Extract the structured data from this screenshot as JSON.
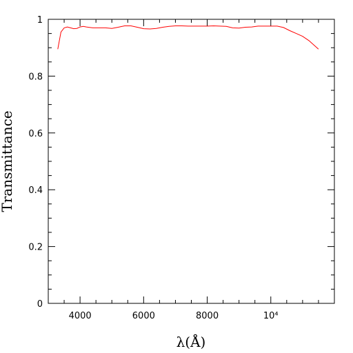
{
  "chart_data": {
    "type": "line",
    "title": "",
    "xlabel": "λ(Å)",
    "ylabel": "Transmittance",
    "xlim": [
      3000,
      12000
    ],
    "ylim": [
      0,
      1
    ],
    "x_major_ticks": [
      4000,
      6000,
      8000,
      10000
    ],
    "x_tick_labels": [
      "4000",
      "6000",
      "8000",
      "10⁴"
    ],
    "x_minor_step": 500,
    "y_major_ticks": [
      0,
      0.2,
      0.4,
      0.6,
      0.8,
      1
    ],
    "y_tick_labels": [
      "0",
      "0.2",
      "0.4",
      "0.6",
      "0.8",
      "1"
    ],
    "y_minor_step": 0.05,
    "grid": false,
    "series": [
      {
        "color": "#ff0000",
        "x": [
          3300,
          3400,
          3500,
          3600,
          3700,
          3800,
          3900,
          4000,
          4100,
          4200,
          4400,
          4600,
          4800,
          5000,
          5200,
          5400,
          5600,
          5800,
          6000,
          6200,
          6400,
          6600,
          6800,
          7000,
          7200,
          7400,
          7600,
          7800,
          8000,
          8200,
          8400,
          8600,
          8800,
          9000,
          9200,
          9400,
          9600,
          9800,
          10000,
          10200,
          10400,
          10600,
          10800,
          11000,
          11200,
          11400,
          11500
        ],
        "y": [
          0.895,
          0.955,
          0.97,
          0.973,
          0.97,
          0.967,
          0.968,
          0.973,
          0.975,
          0.973,
          0.97,
          0.97,
          0.97,
          0.968,
          0.972,
          0.977,
          0.977,
          0.972,
          0.967,
          0.966,
          0.968,
          0.972,
          0.975,
          0.977,
          0.977,
          0.976,
          0.976,
          0.976,
          0.976,
          0.977,
          0.976,
          0.975,
          0.97,
          0.969,
          0.972,
          0.973,
          0.976,
          0.976,
          0.976,
          0.976,
          0.971,
          0.96,
          0.95,
          0.94,
          0.925,
          0.905,
          0.895
        ]
      }
    ]
  }
}
